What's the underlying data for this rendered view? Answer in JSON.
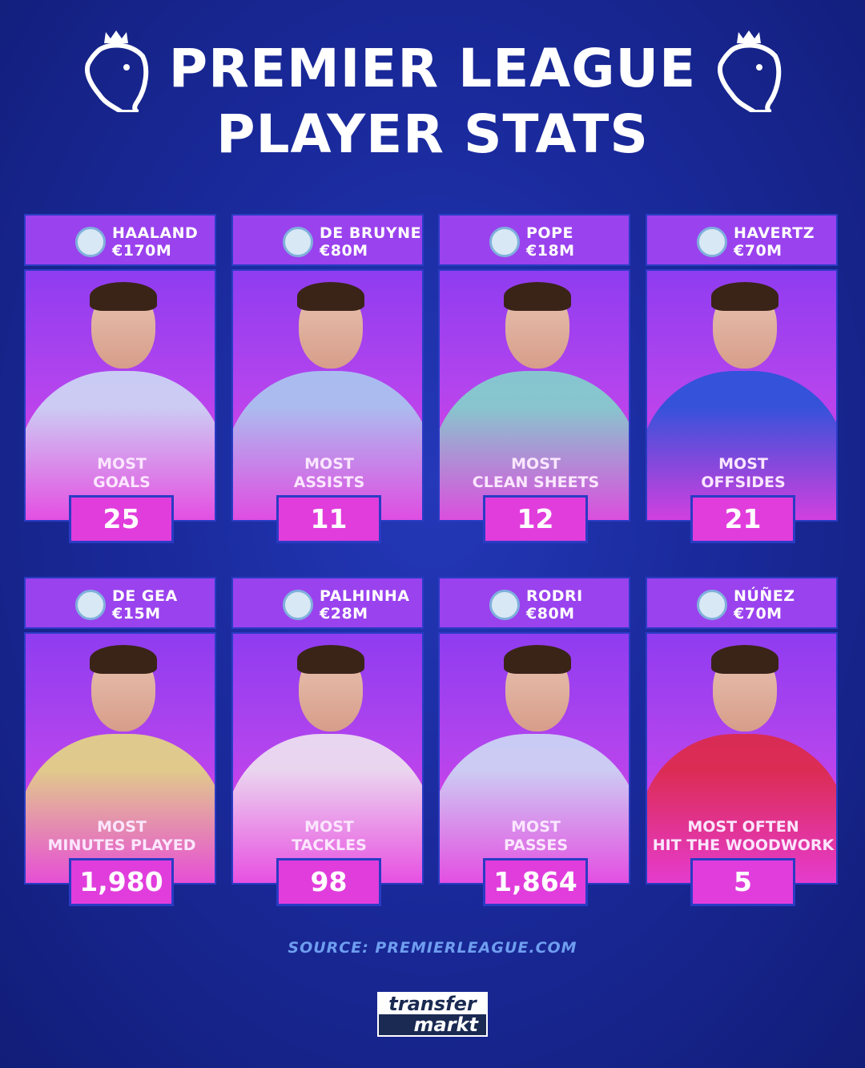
{
  "title_line1": "PREMIER LEAGUE",
  "title_line2": "PLAYER STATS",
  "colors": {
    "background": "#1a2a9c",
    "card_top": "#8f3cf0",
    "card_bottom": "#e53ee0",
    "source": "#6f9ef0"
  },
  "cards": [
    {
      "name": "HAALAND",
      "value": "€170M",
      "club_icon": "man-city-crest",
      "stat_line1": "MOST",
      "stat_line2": "GOALS",
      "stat": "25",
      "kit": "#cfe3f5"
    },
    {
      "name": "DE BRUYNE",
      "value": "€80M",
      "club_icon": "man-city-crest",
      "stat_line1": "MOST",
      "stat_line2": "ASSISTS",
      "stat": "11",
      "kit": "#a9d0f0"
    },
    {
      "name": "POPE",
      "value": "€18M",
      "club_icon": "newcastle-crest",
      "stat_line1": "MOST",
      "stat_line2": "CLEAN SHEETS",
      "stat": "12",
      "kit": "#7fdcc9"
    },
    {
      "name": "HAVERTZ",
      "value": "€70M",
      "club_icon": "chelsea-crest",
      "stat_line1": "MOST",
      "stat_line2": "OFFSIDES",
      "stat": "21",
      "kit": "#1f55d6"
    },
    {
      "name": "DE GEA",
      "value": "€15M",
      "club_icon": "man-united-crest",
      "stat_line1": "MOST",
      "stat_line2": "MINUTES PLAYED",
      "stat": "1,980",
      "kit": "#e8e07a"
    },
    {
      "name": "PALHINHA",
      "value": "€28M",
      "club_icon": "fulham-crest",
      "stat_line1": "MOST",
      "stat_line2": "TACKLES",
      "stat": "98",
      "kit": "#f2eef0"
    },
    {
      "name": "RODRI",
      "value": "€80M",
      "club_icon": "man-city-crest",
      "stat_line1": "MOST",
      "stat_line2": "PASSES",
      "stat": "1,864",
      "kit": "#cfe3f5"
    },
    {
      "name": "NÚÑEZ",
      "value": "€70M",
      "club_icon": "liverpool-crest",
      "stat_line1": "MOST OFTEN",
      "stat_line2": "HIT THE WOODWORK",
      "stat": "5",
      "kit": "#e0283a"
    }
  ],
  "source": "SOURCE: PREMIERLEAGUE.COM",
  "logo": {
    "line1": "transfer",
    "line2": "markt"
  }
}
